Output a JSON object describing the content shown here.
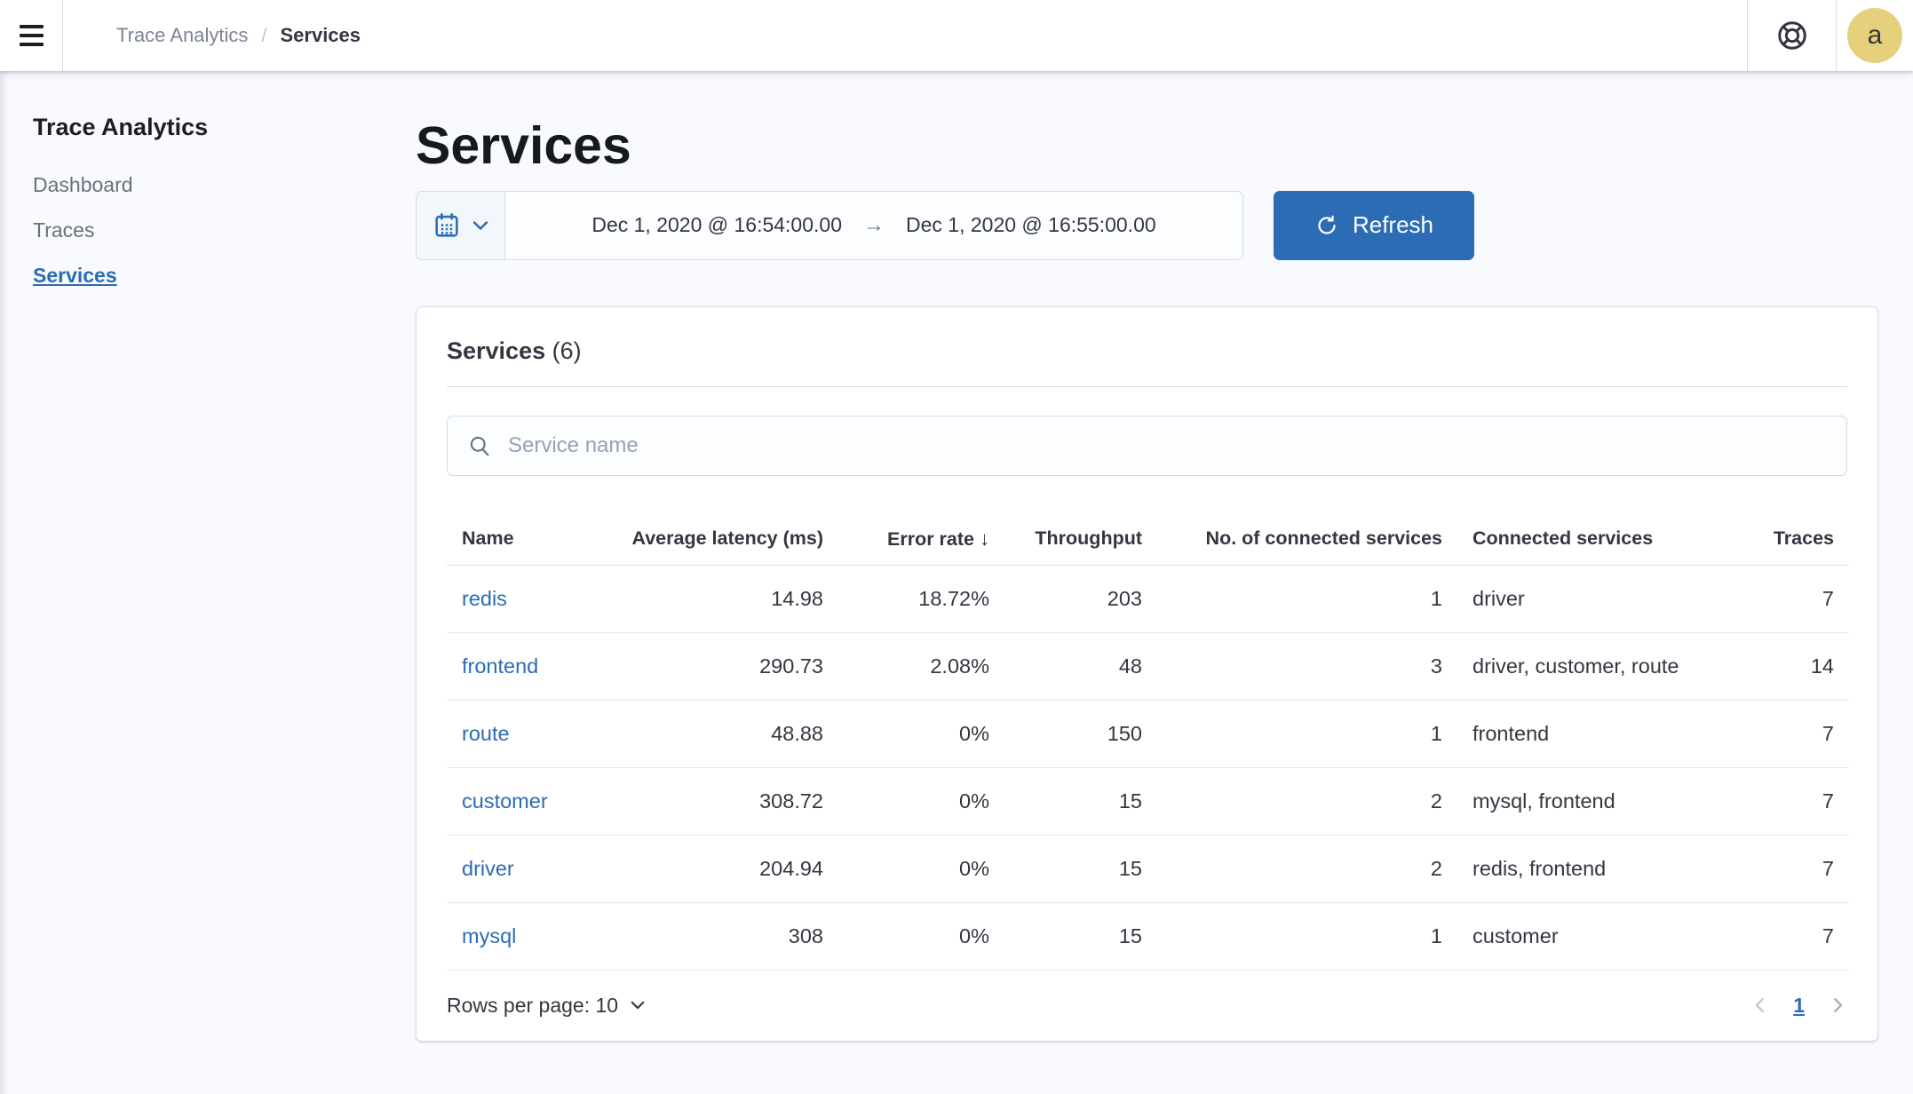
{
  "nav": {
    "breadcrumbs": [
      {
        "label": "Trace Analytics"
      },
      {
        "label": "Services"
      }
    ],
    "separator": "/",
    "help_icon": "life-ring-help-icon",
    "menu_icon": "hamburger-menu-icon",
    "avatar_letter": "a"
  },
  "sidebar": {
    "title": "Trace Analytics",
    "items": [
      {
        "label": "Dashboard",
        "active": false
      },
      {
        "label": "Traces",
        "active": false
      },
      {
        "label": "Services",
        "active": true
      }
    ]
  },
  "main": {
    "title": "Services",
    "datepicker": {
      "calendar_icon": "calendar-icon",
      "start": "Dec 1, 2020 @ 16:54:00.00",
      "arrow": "→",
      "end": "Dec 1, 2020 @ 16:55:00.00"
    },
    "refresh_label": "Refresh"
  },
  "panel": {
    "title": "Services",
    "count": "(6)",
    "search_placeholder": "Service name",
    "search_icon": "search-icon",
    "table": {
      "columns": [
        {
          "label": "Name",
          "align": "left",
          "key": "name"
        },
        {
          "label": "Average latency (ms)",
          "align": "right",
          "key": "avg_latency"
        },
        {
          "label": "Error rate",
          "align": "right",
          "key": "error_rate",
          "sorted": "desc",
          "sort_glyph": "↓"
        },
        {
          "label": "Throughput",
          "align": "right",
          "key": "throughput"
        },
        {
          "label": "No. of connected services",
          "align": "right",
          "key": "connected_count"
        },
        {
          "label": "Connected services",
          "align": "left",
          "key": "connected_services"
        },
        {
          "label": "Traces",
          "align": "right",
          "key": "traces"
        }
      ],
      "rows": [
        {
          "name": "redis",
          "avg_latency": "14.98",
          "error_rate": "18.72%",
          "throughput": "203",
          "connected_count": "1",
          "connected_services": "driver",
          "traces": "7"
        },
        {
          "name": "frontend",
          "avg_latency": "290.73",
          "error_rate": "2.08%",
          "throughput": "48",
          "connected_count": "3",
          "connected_services": "driver, customer, route",
          "traces": "14"
        },
        {
          "name": "route",
          "avg_latency": "48.88",
          "error_rate": "0%",
          "throughput": "150",
          "connected_count": "1",
          "connected_services": "frontend",
          "traces": "7"
        },
        {
          "name": "customer",
          "avg_latency": "308.72",
          "error_rate": "0%",
          "throughput": "15",
          "connected_count": "2",
          "connected_services": "mysql, frontend",
          "traces": "7"
        },
        {
          "name": "driver",
          "avg_latency": "204.94",
          "error_rate": "0%",
          "throughput": "15",
          "connected_count": "2",
          "connected_services": "redis, frontend",
          "traces": "7"
        },
        {
          "name": "mysql",
          "avg_latency": "308",
          "error_rate": "0%",
          "throughput": "15",
          "connected_count": "1",
          "connected_services": "customer",
          "traces": "7"
        }
      ]
    },
    "footer": {
      "rows_per_page_label": "Rows per page: 10",
      "page": "1"
    }
  },
  "colors": {
    "accent_blue": "#2b6cb4",
    "text_dark": "#343741",
    "text_muted": "#69707d",
    "border": "#d3dae6",
    "avatar_bg": "#e5d07b",
    "page_bg": "#f9fafd"
  }
}
